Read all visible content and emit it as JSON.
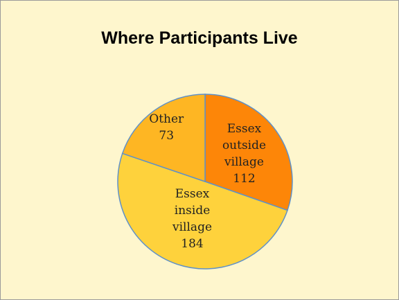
{
  "chart_data": {
    "type": "pie",
    "title": "Where Participants Live",
    "categories": [
      "Essex outside village",
      "Essex inside village",
      "Other"
    ],
    "values": [
      112,
      184,
      73
    ],
    "colors": [
      "#fd8608",
      "#fed23c",
      "#feb623"
    ]
  }
}
